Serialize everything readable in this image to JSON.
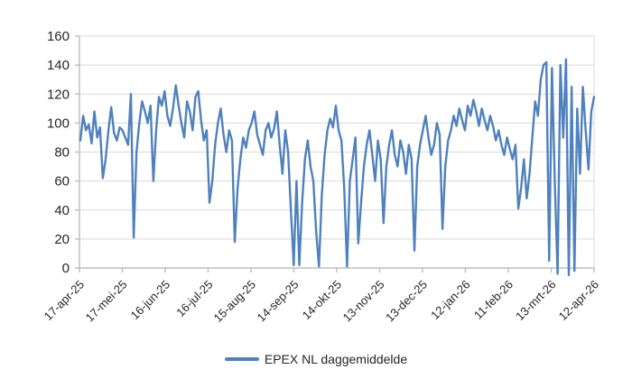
{
  "chart_data": {
    "type": "line",
    "title": "",
    "xlabel": "",
    "ylabel": "",
    "ylim": [
      0,
      160
    ],
    "ytick_step": 20,
    "y_tick_labels": [
      "0",
      "20",
      "40",
      "60",
      "80",
      "100",
      "120",
      "140",
      "160"
    ],
    "x_tick_labels": [
      "17-apr-25",
      "17-mei-25",
      "16-jun-25",
      "16-jul-25",
      "15-aug-25",
      "14-sep-25",
      "14-okt-25",
      "13-nov-25",
      "13-dec-25",
      "12-jan-26",
      "11-feb-26",
      "13-mrt-26",
      "12-apr-26"
    ],
    "grid": "horizontal",
    "legend_position": "bottom",
    "colors": {
      "line": "#4f81bd",
      "grid": "#d9d9d9",
      "axis": "#bfbfbf",
      "text": "#262626"
    },
    "series": [
      {
        "name": "EPEX NL daggemiddelde",
        "values": [
          88,
          105,
          95,
          99,
          86,
          108,
          90,
          97,
          62,
          75,
          95,
          111,
          93,
          88,
          97,
          95,
          90,
          85,
          120,
          21,
          80,
          100,
          115,
          108,
          100,
          112,
          60,
          95,
          118,
          112,
          122,
          105,
          98,
          110,
          126,
          112,
          100,
          90,
          115,
          108,
          95,
          118,
          122,
          102,
          88,
          95,
          45,
          60,
          85,
          100,
          110,
          92,
          80,
          95,
          88,
          18,
          55,
          75,
          90,
          83,
          95,
          100,
          108,
          92,
          85,
          78,
          95,
          100,
          90,
          96,
          108,
          85,
          65,
          95,
          80,
          40,
          2,
          60,
          2,
          45,
          75,
          88,
          70,
          60,
          25,
          1,
          50,
          78,
          95,
          103,
          97,
          112,
          95,
          88,
          55,
          1,
          60,
          75,
          90,
          17,
          45,
          70,
          85,
          95,
          78,
          60,
          88,
          75,
          31,
          70,
          85,
          95,
          78,
          70,
          88,
          80,
          65,
          85,
          75,
          12,
          70,
          85,
          95,
          105,
          90,
          78,
          85,
          100,
          92,
          27,
          70,
          88,
          95,
          105,
          98,
          110,
          102,
          95,
          112,
          105,
          116,
          108,
          98,
          110,
          102,
          95,
          105,
          98,
          88,
          95,
          85,
          78,
          90,
          82,
          75,
          85,
          41,
          55,
          75,
          48,
          65,
          90,
          115,
          105,
          130,
          140,
          142,
          5,
          138,
          60,
          -4,
          140,
          90,
          144,
          -5,
          125,
          -2,
          110,
          65,
          125,
          95,
          68,
          108,
          118
        ]
      }
    ]
  }
}
